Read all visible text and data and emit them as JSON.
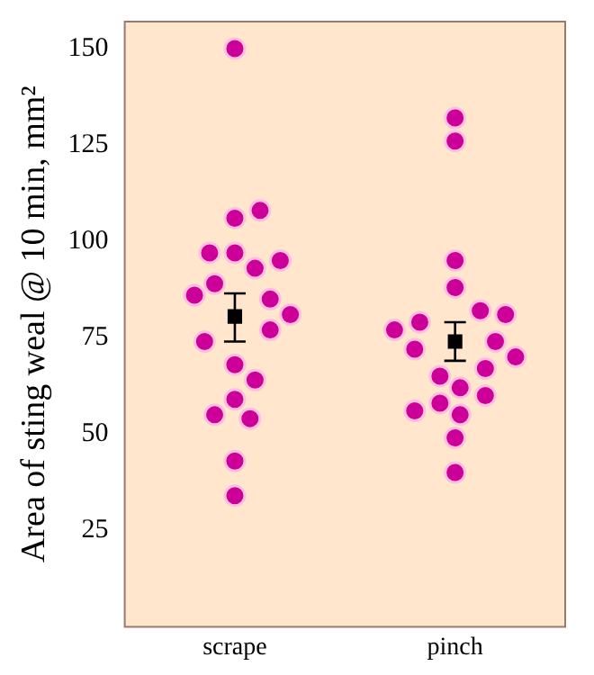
{
  "chart_data": {
    "type": "scatter",
    "ylabel": "Area of sting weal @ 10 min, mm²",
    "categories": [
      "scrape",
      "pinch"
    ],
    "ylim": [
      0,
      157
    ],
    "yticks": [
      25,
      50,
      75,
      100,
      125,
      150
    ],
    "grid": false,
    "legend": false,
    "marker": "circle",
    "series": [
      {
        "color": "#cc0099",
        "x": [
          "scrape",
          "scrape",
          "scrape",
          "scrape",
          "scrape",
          "scrape",
          "scrape",
          "scrape",
          "scrape",
          "scrape",
          "scrape",
          "scrape",
          "scrape",
          "scrape",
          "scrape",
          "scrape",
          "scrape",
          "scrape",
          "scrape",
          "scrape"
        ],
        "values": [
          150,
          106,
          108,
          97,
          93,
          97,
          95,
          89,
          85,
          86,
          81,
          77,
          74,
          68,
          64,
          59,
          54,
          55,
          43,
          34
        ]
      },
      {
        "color": "#cc0099",
        "x": [
          "pinch",
          "pinch",
          "pinch",
          "pinch",
          "pinch",
          "pinch",
          "pinch",
          "pinch",
          "pinch",
          "pinch",
          "pinch",
          "pinch",
          "pinch",
          "pinch",
          "pinch",
          "pinch",
          "pinch",
          "pinch",
          "pinch",
          "pinch"
        ],
        "values": [
          132,
          126,
          95,
          88,
          82,
          79,
          81,
          77,
          74,
          72,
          70,
          67,
          65,
          62,
          58,
          60,
          55,
          56,
          49,
          40
        ]
      },
      {
        "color": "#000000",
        "marker": "square",
        "x": [
          "scrape",
          "pinch"
        ],
        "values": [
          80.5,
          74
        ],
        "errors": [
          [
            74,
            86.5
          ],
          [
            69,
            79
          ]
        ]
      }
    ]
  }
}
